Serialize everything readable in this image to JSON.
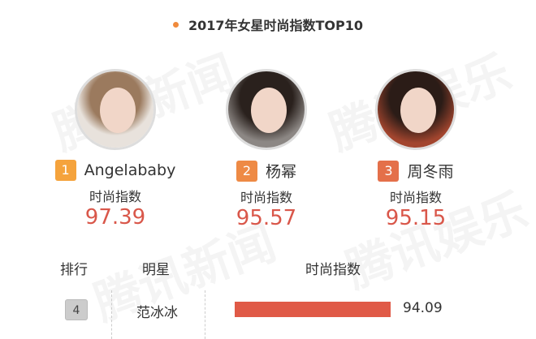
{
  "title": "2017年女星时尚指数TOP10",
  "watermarks": [
    "腾讯新闻",
    "腾讯娱乐"
  ],
  "colors": {
    "accent_dot": "#f08a3c",
    "rank1": "#f5a33c",
    "rank2": "#ee8a45",
    "rank3": "#e4704a",
    "value": "#d9574a",
    "bar": "#e05a47"
  },
  "top3": [
    {
      "rank": "1",
      "name": "Angelababy",
      "label": "时尚指数",
      "value": "97.39"
    },
    {
      "rank": "2",
      "name": "杨幂",
      "label": "时尚指数",
      "value": "95.57"
    },
    {
      "rank": "3",
      "name": "周冬雨",
      "label": "时尚指数",
      "value": "95.15"
    }
  ],
  "table": {
    "headers": [
      "排行",
      "明星",
      "时尚指数"
    ]
  },
  "chart_data": {
    "type": "bar",
    "orientation": "horizontal",
    "rows": [
      {
        "rank": "4",
        "name": "范冰冰",
        "value": 94.09,
        "label": "94.09"
      }
    ]
  }
}
